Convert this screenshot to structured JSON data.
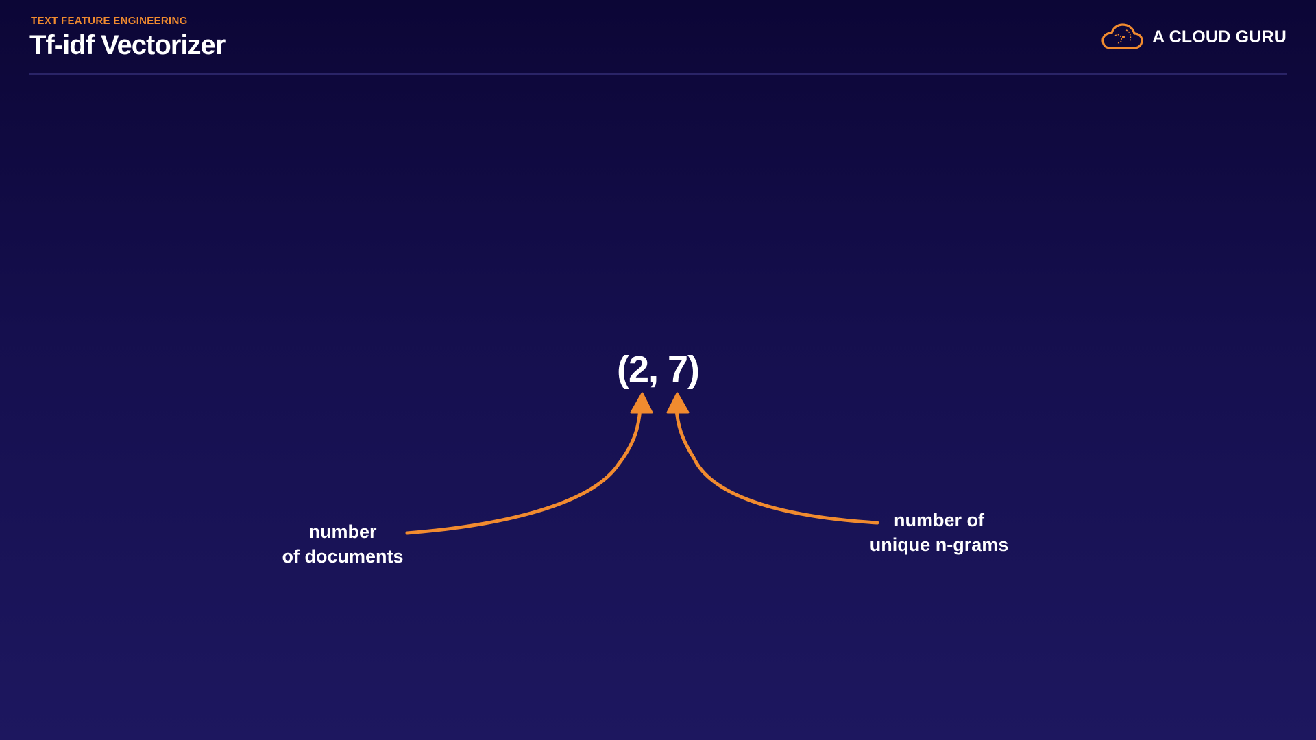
{
  "header": {
    "eyebrow": "TEXT FEATURE ENGINEERING",
    "title": "Tf-idf Vectorizer",
    "brand": "A CLOUD GURU",
    "brand_icon": "cloud-logo-icon"
  },
  "diagram": {
    "tuple_open": "(",
    "rows_value": "2",
    "separator": ", ",
    "cols_value": "7",
    "tuple_close": ")",
    "left_label_line1": "number",
    "left_label_line2": "of documents",
    "right_label_line1": "number of",
    "right_label_line2": "unique n-grams"
  },
  "colors": {
    "accent": "#f18b2f",
    "background_top": "#0c0636",
    "background_bottom": "#1d175f",
    "text": "#ffffff"
  }
}
